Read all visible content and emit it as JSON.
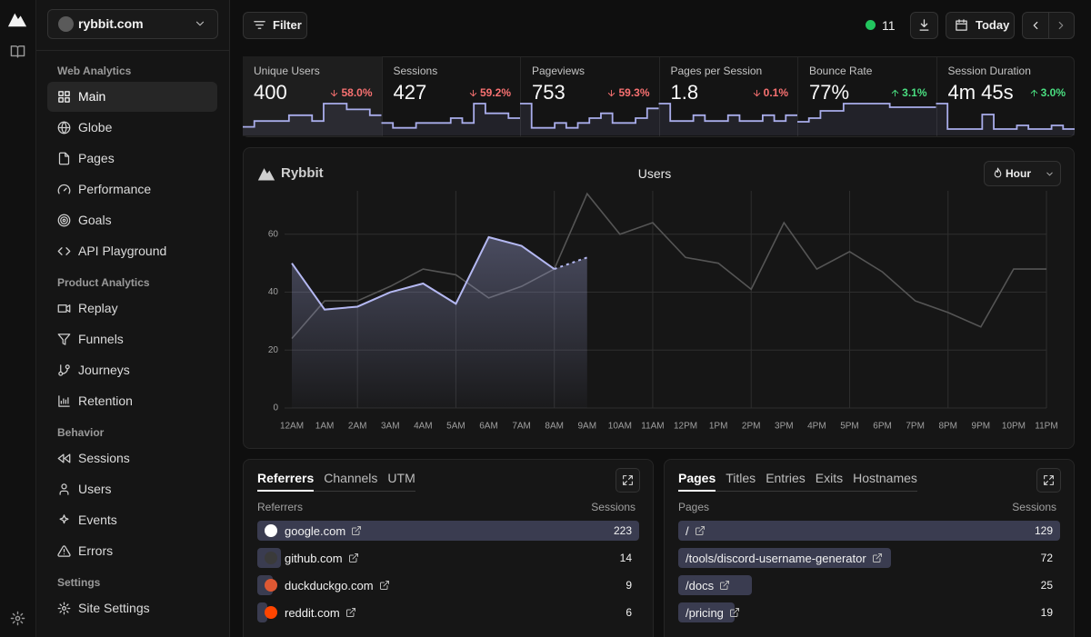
{
  "sidebar": {
    "site": "rybbit.com",
    "active_section": 0,
    "active_item": 0,
    "sections": [
      {
        "title": "Web Analytics",
        "items": [
          "Main",
          "Globe",
          "Pages",
          "Performance",
          "Goals",
          "API Playground"
        ]
      },
      {
        "title": "Product Analytics",
        "items": [
          "Replay",
          "Funnels",
          "Journeys",
          "Retention"
        ]
      },
      {
        "title": "Behavior",
        "items": [
          "Sessions",
          "Users",
          "Events",
          "Errors"
        ]
      },
      {
        "title": "Settings",
        "items": [
          "Site Settings"
        ]
      }
    ]
  },
  "toolbar": {
    "filter": "Filter",
    "live_users": 11,
    "date": "Today"
  },
  "metrics": [
    {
      "label": "Unique Users",
      "value": "400",
      "change": "58.0%",
      "trend": "down",
      "spark": [
        1,
        2,
        2,
        2,
        3,
        3,
        2,
        5,
        5,
        4,
        4,
        3
      ]
    },
    {
      "label": "Sessions",
      "value": "427",
      "change": "59.2%",
      "trend": "down",
      "spark": [
        2,
        1,
        1,
        2,
        2,
        2,
        3,
        2,
        6,
        4,
        4,
        3
      ]
    },
    {
      "label": "Pageviews",
      "value": "753",
      "change": "59.3%",
      "trend": "down",
      "spark": [
        6,
        1,
        1,
        2,
        1,
        2,
        3,
        4,
        2,
        2,
        3,
        5
      ]
    },
    {
      "label": "Pages per Session",
      "value": "1.8",
      "change": "0.1%",
      "trend": "down",
      "spark": [
        5,
        2,
        2,
        3,
        2,
        2,
        3,
        2,
        2,
        3,
        2,
        3
      ]
    },
    {
      "label": "Bounce Rate",
      "value": "77%",
      "change": "3.1%",
      "trend": "up",
      "spark": [
        3,
        4,
        6,
        6,
        8,
        8,
        8,
        8,
        7,
        7,
        7,
        7
      ]
    },
    {
      "label": "Session Duration",
      "value": "4m 45s",
      "change": "3.0%",
      "trend": "up",
      "spark": [
        8,
        1,
        1,
        1,
        5,
        1,
        1,
        2,
        1,
        1,
        2,
        1
      ]
    }
  ],
  "users_chart": {
    "type": "line",
    "brand": "Rybbit",
    "title": "Users",
    "interval": "Hour",
    "categories": [
      "12AM",
      "1AM",
      "2AM",
      "3AM",
      "4AM",
      "5AM",
      "6AM",
      "7AM",
      "8AM",
      "9AM",
      "10AM",
      "11AM",
      "12PM",
      "1PM",
      "2PM",
      "3PM",
      "4PM",
      "5PM",
      "6PM",
      "7PM",
      "8PM",
      "9PM",
      "10PM",
      "11PM"
    ],
    "series": [
      {
        "color": "#b4b8f2",
        "area": true,
        "dashed_last": true,
        "values": [
          50,
          34,
          35,
          40,
          43,
          36,
          59,
          56,
          48,
          52,
          null,
          null,
          null,
          null,
          null,
          null,
          null,
          null,
          null,
          null,
          null,
          null,
          null,
          null
        ]
      },
      {
        "color": "#555555",
        "values": [
          24,
          37,
          37,
          42,
          48,
          46,
          38,
          42,
          48,
          74,
          60,
          64,
          52,
          50,
          41,
          64,
          48,
          54,
          47,
          37,
          33,
          28,
          48,
          48
        ]
      }
    ],
    "ylim": [
      0,
      75
    ],
    "yticks": [
      0,
      20,
      40,
      60
    ],
    "grid": true
  },
  "panels": [
    {
      "tabs": [
        "Referrers",
        "Channels",
        "UTM"
      ],
      "active_tab": 0,
      "columns": [
        "Referrers",
        "Sessions"
      ],
      "icons": true,
      "rows": [
        {
          "name": "google.com",
          "sessions": 223,
          "icon_color": "#ffffff"
        },
        {
          "name": "github.com",
          "sessions": 14,
          "icon_color": "#3a3a3a"
        },
        {
          "name": "duckduckgo.com",
          "sessions": 9,
          "icon_color": "#de5833"
        },
        {
          "name": "reddit.com",
          "sessions": 6,
          "icon_color": "#ff4500"
        }
      ]
    },
    {
      "tabs": [
        "Pages",
        "Titles",
        "Entries",
        "Exits",
        "Hostnames"
      ],
      "active_tab": 0,
      "columns": [
        "Pages",
        "Sessions"
      ],
      "icons": false,
      "rows": [
        {
          "name": "/",
          "sessions": 129
        },
        {
          "name": "/tools/discord-username-generator",
          "sessions": 72
        },
        {
          "name": "/docs",
          "sessions": 25
        },
        {
          "name": "/pricing",
          "sessions": 19
        }
      ]
    }
  ]
}
